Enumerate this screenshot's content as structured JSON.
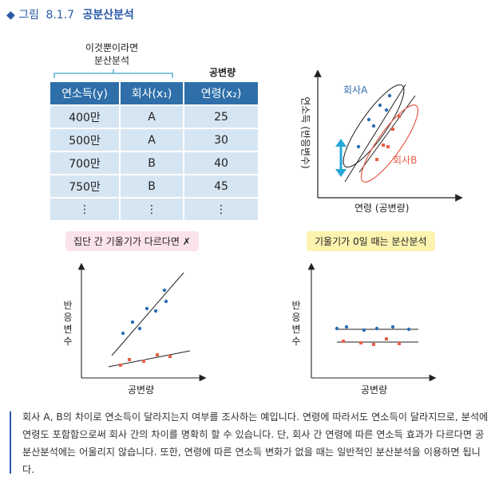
{
  "figure": {
    "marker": "◆",
    "prefix": "그림",
    "number": "8.1.7",
    "name": "공분산분석"
  },
  "table": {
    "note": [
      "이것뿐이라면",
      "분산분석"
    ],
    "covariate_label": "공변량",
    "headers": [
      "연소득(y)",
      "회사(x₁)",
      "연령(x₂)"
    ],
    "rows": [
      [
        "400만",
        "A",
        "25"
      ],
      [
        "500만",
        "A",
        "30"
      ],
      [
        "700만",
        "B",
        "40"
      ],
      [
        "750만",
        "B",
        "45"
      ],
      [
        "⋮",
        "⋮",
        "⋮"
      ]
    ]
  },
  "top_chart": {
    "ylabel": "연소득 (반응변수)",
    "xlabel": "연령 (공변량)",
    "label_a": "회사A",
    "label_b": "회사B"
  },
  "left_chart": {
    "pill": "집단 간 기울기가 다르다면 ✗",
    "ylabel": "반응변수",
    "xlabel": "공변량"
  },
  "right_chart": {
    "pill": "기울기가 0일 때는 분산분석",
    "ylabel": "반응변수",
    "xlabel": "공변량"
  },
  "colors": {
    "blue": "#2f6db3",
    "red": "#e8604a",
    "header": "#2e6fa9",
    "cell": "#d6e5f2",
    "accent": "#2b5aa8"
  },
  "paragraph": "회사 A, B의 차이로 연소득이 달라지는지 여부를 조사하는 예입니다. 연령에 따라서도 연소득이 달라지므로, 분석에 연령도 포함함으로써 회사 간의 차이를 명확히 할 수 있습니다. 단, 회사 간 연령에 따른 연소득 효과가 다르다면 공분산분석에는 어울리지 않습니다. 또한, 연령에 따른 연소득 변화가 없을 때는 일반적인 분산분석을 이용하면 됩니다."
}
